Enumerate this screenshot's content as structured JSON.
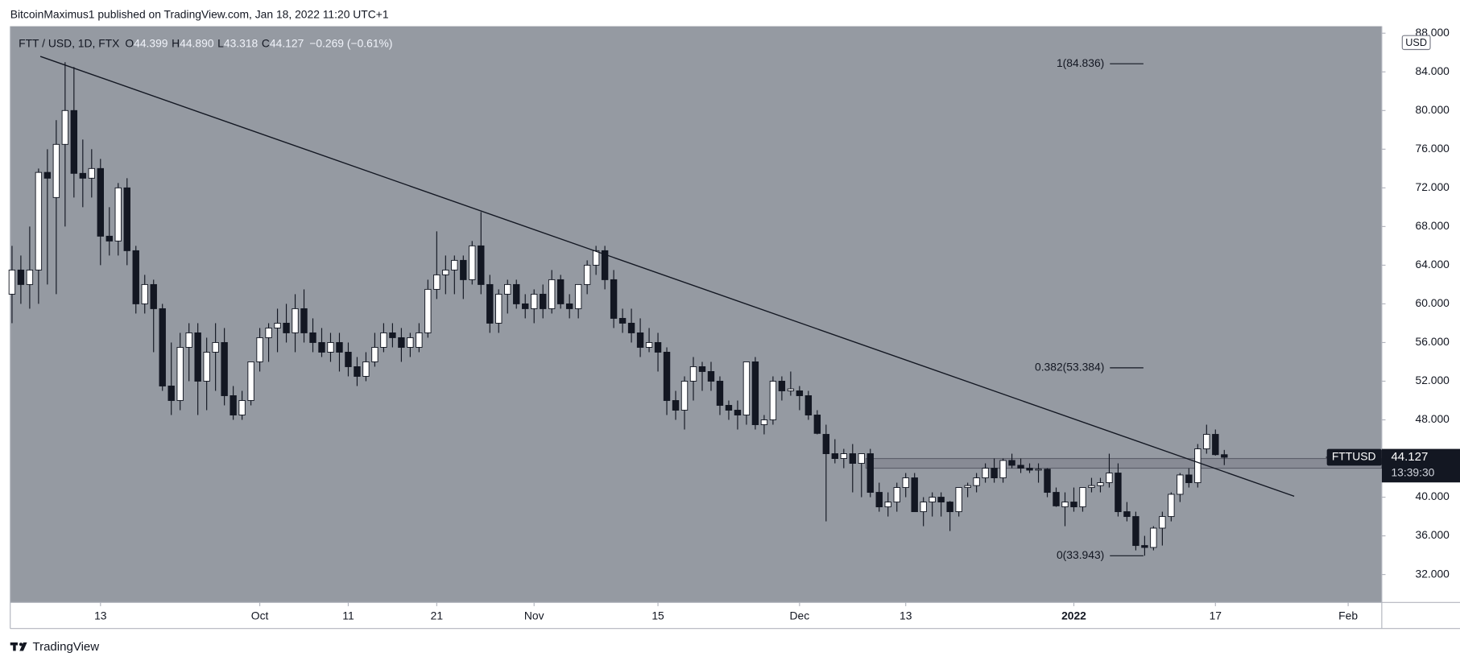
{
  "header": {
    "publisher": "BitcoinMaximus1 published on TradingView.com, Jan 18, 2022 11:20 UTC+1",
    "brand": "TradingView"
  },
  "chart_data": {
    "type": "candlestick",
    "legend": {
      "symbol": "FTT / USD, 1D, FTX",
      "items": [
        {
          "key": "O",
          "value": "44.399"
        },
        {
          "key": "H",
          "value": "44.890"
        },
        {
          "key": "L",
          "value": "43.318"
        },
        {
          "key": "C",
          "value": "44.127"
        }
      ],
      "change": "−0.269 (−0.61%)"
    },
    "currency": "USD",
    "ticker": "FTTUSD",
    "last_price": {
      "value": 44.127,
      "label": "44.127"
    },
    "countdown": "13:39:30",
    "up_color": "#ffffff",
    "down_color": "#131722",
    "background": "#959aa2",
    "xlim": [
      -0.2,
      154.8
    ],
    "ylim": [
      29.11,
      88.72
    ],
    "xticks": [
      {
        "value": 10,
        "label": "13"
      },
      {
        "value": 28,
        "label": "Oct"
      },
      {
        "value": 38,
        "label": "11"
      },
      {
        "value": 48,
        "label": "21"
      },
      {
        "value": 59,
        "label": "Nov"
      },
      {
        "value": 73,
        "label": "15"
      },
      {
        "value": 89,
        "label": "Dec"
      },
      {
        "value": 101,
        "label": "13"
      },
      {
        "value": 120,
        "label": "2022"
      },
      {
        "value": 136,
        "label": "17"
      },
      {
        "value": 151,
        "label": "Feb"
      }
    ],
    "yticks": [
      {
        "value": 32,
        "label": "32.000"
      },
      {
        "value": 36,
        "label": "36.000"
      },
      {
        "value": 40,
        "label": "40.000"
      },
      {
        "value": 44,
        "label": "44.000"
      },
      {
        "value": 48,
        "label": "48.000"
      },
      {
        "value": 52,
        "label": "52.000"
      },
      {
        "value": 56,
        "label": "56.000"
      },
      {
        "value": 60,
        "label": "60.000"
      },
      {
        "value": 64,
        "label": "64.000"
      },
      {
        "value": 68,
        "label": "68.000"
      },
      {
        "value": 72,
        "label": "72.000"
      },
      {
        "value": 76,
        "label": "76.000"
      },
      {
        "value": 80,
        "label": "80.000"
      },
      {
        "value": 84,
        "label": "84.000"
      },
      {
        "value": 88,
        "label": "88.000"
      }
    ],
    "fib_levels": [
      {
        "value": 84.836,
        "label": "1(84.836)"
      },
      {
        "value": 53.384,
        "label": "0.382(53.384)"
      },
      {
        "value": 33.943,
        "label": "0(33.943)"
      }
    ],
    "trendline": {
      "x": [
        3.2,
        144.9
      ],
      "y": [
        85.6,
        40.1
      ]
    },
    "zone": {
      "x": [
        96.5,
        154.8
      ],
      "y": [
        43,
        44
      ]
    },
    "candles": [
      [
        61,
        66,
        58,
        63.5
      ],
      [
        63.5,
        65,
        60,
        62
      ],
      [
        62,
        68,
        59.5,
        63.5
      ],
      [
        63.5,
        74,
        60,
        73.6
      ],
      [
        73.6,
        76,
        62,
        73
      ],
      [
        71,
        79,
        61,
        76.5
      ],
      [
        76.5,
        85,
        68,
        80
      ],
      [
        80,
        84.5,
        71,
        73.5
      ],
      [
        73.5,
        77,
        70,
        73
      ],
      [
        73,
        76,
        71,
        74
      ],
      [
        74,
        75,
        64,
        67
      ],
      [
        67,
        70,
        65,
        66.5
      ],
      [
        66.5,
        72.5,
        65,
        72
      ],
      [
        72,
        73,
        64,
        65.5
      ],
      [
        65.5,
        66,
        59,
        60
      ],
      [
        60,
        63,
        59,
        62
      ],
      [
        62,
        62.5,
        55,
        59.5
      ],
      [
        59.5,
        60,
        51,
        51.5
      ],
      [
        51.5,
        56,
        48.5,
        50
      ],
      [
        50,
        57,
        49,
        55.5
      ],
      [
        55.5,
        58,
        52,
        57
      ],
      [
        57,
        58,
        48.5,
        52
      ],
      [
        52,
        56.5,
        49,
        55
      ],
      [
        55,
        58,
        51,
        56
      ],
      [
        56,
        57.5,
        49.5,
        50.5
      ],
      [
        50.5,
        51.5,
        48,
        48.5
      ],
      [
        48.5,
        51,
        48,
        50
      ],
      [
        50,
        54,
        49.5,
        54
      ],
      [
        54,
        57.5,
        53,
        56.5
      ],
      [
        56.5,
        58,
        54,
        57.5
      ],
      [
        57.5,
        59.5,
        55,
        58
      ],
      [
        58,
        60,
        56,
        57
      ],
      [
        57,
        61,
        55,
        59.5
      ],
      [
        59.5,
        61.5,
        56,
        57
      ],
      [
        57,
        58.5,
        55,
        56
      ],
      [
        56,
        57.5,
        54.5,
        55
      ],
      [
        55,
        57,
        54,
        56
      ],
      [
        56,
        57,
        53,
        55
      ],
      [
        55,
        56,
        52.5,
        53.5
      ],
      [
        53.5,
        54.5,
        51.5,
        52.5
      ],
      [
        52.5,
        55,
        52,
        54
      ],
      [
        54,
        57,
        53.5,
        55.5
      ],
      [
        55.5,
        58,
        55,
        57
      ],
      [
        57,
        58,
        55.5,
        56.5
      ],
      [
        56.5,
        57.5,
        54,
        55.5
      ],
      [
        55.5,
        57,
        54.5,
        56.5
      ],
      [
        55.5,
        58,
        55,
        57
      ],
      [
        57,
        62.5,
        56.5,
        61.5
      ],
      [
        61.5,
        67.5,
        60.5,
        63
      ],
      [
        63,
        65,
        61,
        63.5
      ],
      [
        63.5,
        65,
        61,
        64.5
      ],
      [
        64.5,
        65,
        60.5,
        62.5
      ],
      [
        62.5,
        66.5,
        62,
        66
      ],
      [
        66,
        69.5,
        61,
        62
      ],
      [
        62,
        63,
        57,
        58
      ],
      [
        58,
        61.5,
        57,
        61
      ],
      [
        61,
        62.5,
        59,
        62
      ],
      [
        62,
        62.5,
        59.5,
        60
      ],
      [
        60,
        61,
        58.5,
        59.5
      ],
      [
        59.5,
        61.5,
        58,
        61
      ],
      [
        61,
        62,
        58.5,
        59.5
      ],
      [
        59.5,
        63.5,
        59,
        62.5
      ],
      [
        62.5,
        63,
        59.5,
        60
      ],
      [
        60,
        61,
        58.5,
        59.5
      ],
      [
        59.5,
        62,
        58.5,
        62
      ],
      [
        62,
        64.5,
        61,
        64
      ],
      [
        64,
        66,
        63,
        65.5
      ],
      [
        65.5,
        66,
        61.5,
        62.5
      ],
      [
        62.5,
        63.5,
        57.5,
        58.5
      ],
      [
        58.5,
        59.5,
        57,
        58
      ],
      [
        58,
        59.5,
        56,
        57
      ],
      [
        57,
        58.5,
        54.5,
        55.5
      ],
      [
        55.5,
        57.5,
        55,
        56
      ],
      [
        56,
        57,
        53,
        55
      ],
      [
        55,
        55.5,
        48.5,
        50
      ],
      [
        50,
        51,
        48,
        49
      ],
      [
        49,
        52.5,
        47,
        52
      ],
      [
        52,
        54.5,
        50,
        53.5
      ],
      [
        53.5,
        54,
        51,
        53
      ],
      [
        53,
        54,
        51,
        52
      ],
      [
        52,
        52.5,
        48.5,
        49.5
      ],
      [
        49.5,
        50,
        48,
        49
      ],
      [
        49,
        50,
        47,
        48.5
      ],
      [
        48.5,
        54,
        47.5,
        54
      ],
      [
        54,
        54.5,
        47,
        47.5
      ],
      [
        47.5,
        48.5,
        46.5,
        48
      ],
      [
        48,
        52.5,
        47.5,
        52
      ],
      [
        52,
        52.5,
        50,
        51
      ],
      [
        51,
        53,
        50.5,
        51.2
      ],
      [
        51,
        51.5,
        49,
        50.5
      ],
      [
        50.5,
        51,
        48,
        48.5
      ],
      [
        48.5,
        49,
        46.5,
        46.6
      ],
      [
        46.5,
        47.5,
        37.5,
        44.5
      ],
      [
        44.5,
        46,
        43.5,
        44
      ],
      [
        44,
        45,
        43,
        44.5
      ],
      [
        44.5,
        45.5,
        40.5,
        43.5
      ],
      [
        43.5,
        44.5,
        40,
        44.5
      ],
      [
        44.5,
        45,
        40,
        40.5
      ],
      [
        40.5,
        41.5,
        38.5,
        39
      ],
      [
        39,
        40.5,
        38,
        39.5
      ],
      [
        39.5,
        41.5,
        38.5,
        41
      ],
      [
        41,
        42.5,
        40,
        42
      ],
      [
        42,
        42.5,
        38.5,
        38.5
      ],
      [
        38.5,
        40,
        37,
        39.5
      ],
      [
        39.5,
        40.5,
        38,
        40
      ],
      [
        40,
        40.5,
        38,
        39.5
      ],
      [
        39.5,
        39.6,
        36.5,
        38.5
      ],
      [
        38.5,
        41,
        38,
        41
      ],
      [
        41,
        41.5,
        40,
        41.2
      ],
      [
        41.2,
        42.5,
        40.5,
        42
      ],
      [
        42,
        43.5,
        41.5,
        43
      ],
      [
        43,
        44,
        41.5,
        42
      ],
      [
        42,
        44,
        41.5,
        43.8
      ],
      [
        43.8,
        44.5,
        43,
        43.3
      ],
      [
        43.3,
        44,
        42.5,
        43
      ],
      [
        43,
        43.5,
        42.5,
        42.8
      ],
      [
        42.8,
        43.5,
        41.5,
        42.9
      ],
      [
        42.9,
        43,
        40,
        40.5
      ],
      [
        40.5,
        41,
        39,
        39.1
      ],
      [
        39,
        40.5,
        37,
        39.5
      ],
      [
        39.5,
        41,
        38.5,
        39
      ],
      [
        39,
        41,
        38.5,
        41
      ],
      [
        41,
        42,
        40.5,
        41.2
      ],
      [
        41.2,
        42,
        40.5,
        41.5
      ],
      [
        41.5,
        44.5,
        41,
        42.5
      ],
      [
        42.5,
        43.5,
        38,
        38.5
      ],
      [
        38.5,
        39.5,
        37.5,
        38
      ],
      [
        38,
        38.5,
        34.5,
        35
      ],
      [
        35,
        36,
        33.943,
        34.8
      ],
      [
        34.8,
        37,
        34.5,
        36.8
      ],
      [
        36.8,
        38.5,
        35,
        38
      ],
      [
        38,
        40.5,
        37.5,
        40.3
      ],
      [
        40.3,
        42.5,
        39.5,
        42.3
      ],
      [
        42.3,
        43,
        41,
        41.5
      ],
      [
        41.5,
        45.5,
        41,
        45
      ],
      [
        45,
        47.5,
        44.5,
        46.5
      ],
      [
        46.5,
        47,
        44.3,
        44.4
      ],
      [
        44.399,
        44.89,
        43.318,
        44.127
      ]
    ]
  }
}
